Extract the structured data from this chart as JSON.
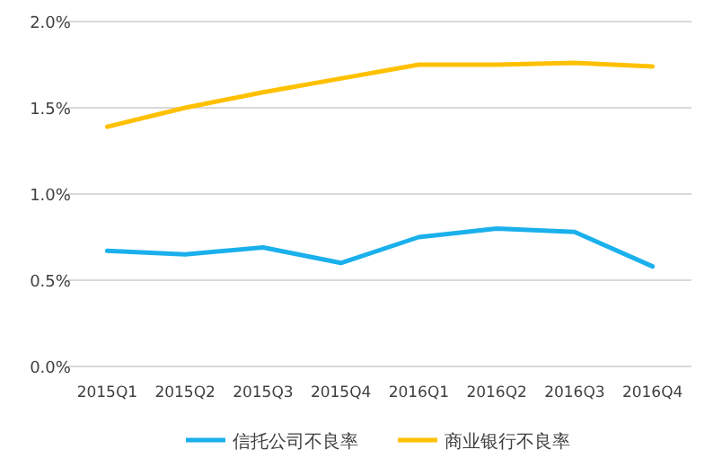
{
  "chart_data": {
    "type": "line",
    "categories": [
      "2015Q1",
      "2015Q2",
      "2015Q3",
      "2015Q4",
      "2016Q1",
      "2016Q2",
      "2016Q3",
      "2016Q4"
    ],
    "series": [
      {
        "name": "信托公司不良率",
        "color": "#1ab0ec",
        "values": [
          0.67,
          0.65,
          0.69,
          0.6,
          0.75,
          0.8,
          0.78,
          0.58
        ]
      },
      {
        "name": "商业银行不良率",
        "color": "#ffc000",
        "values": [
          1.39,
          1.5,
          1.59,
          1.67,
          1.75,
          1.75,
          1.76,
          1.74
        ]
      }
    ],
    "ylim": [
      0,
      2
    ],
    "yticks": [
      {
        "value": 0,
        "label": "0.0%"
      },
      {
        "value": 0.5,
        "label": "0.5%"
      },
      {
        "value": 1,
        "label": "1.0%"
      },
      {
        "value": 1.5,
        "label": "1.5%"
      },
      {
        "value": 2,
        "label": "2.0%"
      }
    ],
    "grid": "y",
    "legend": "bottom",
    "marker": "none",
    "line_style": "solid"
  }
}
